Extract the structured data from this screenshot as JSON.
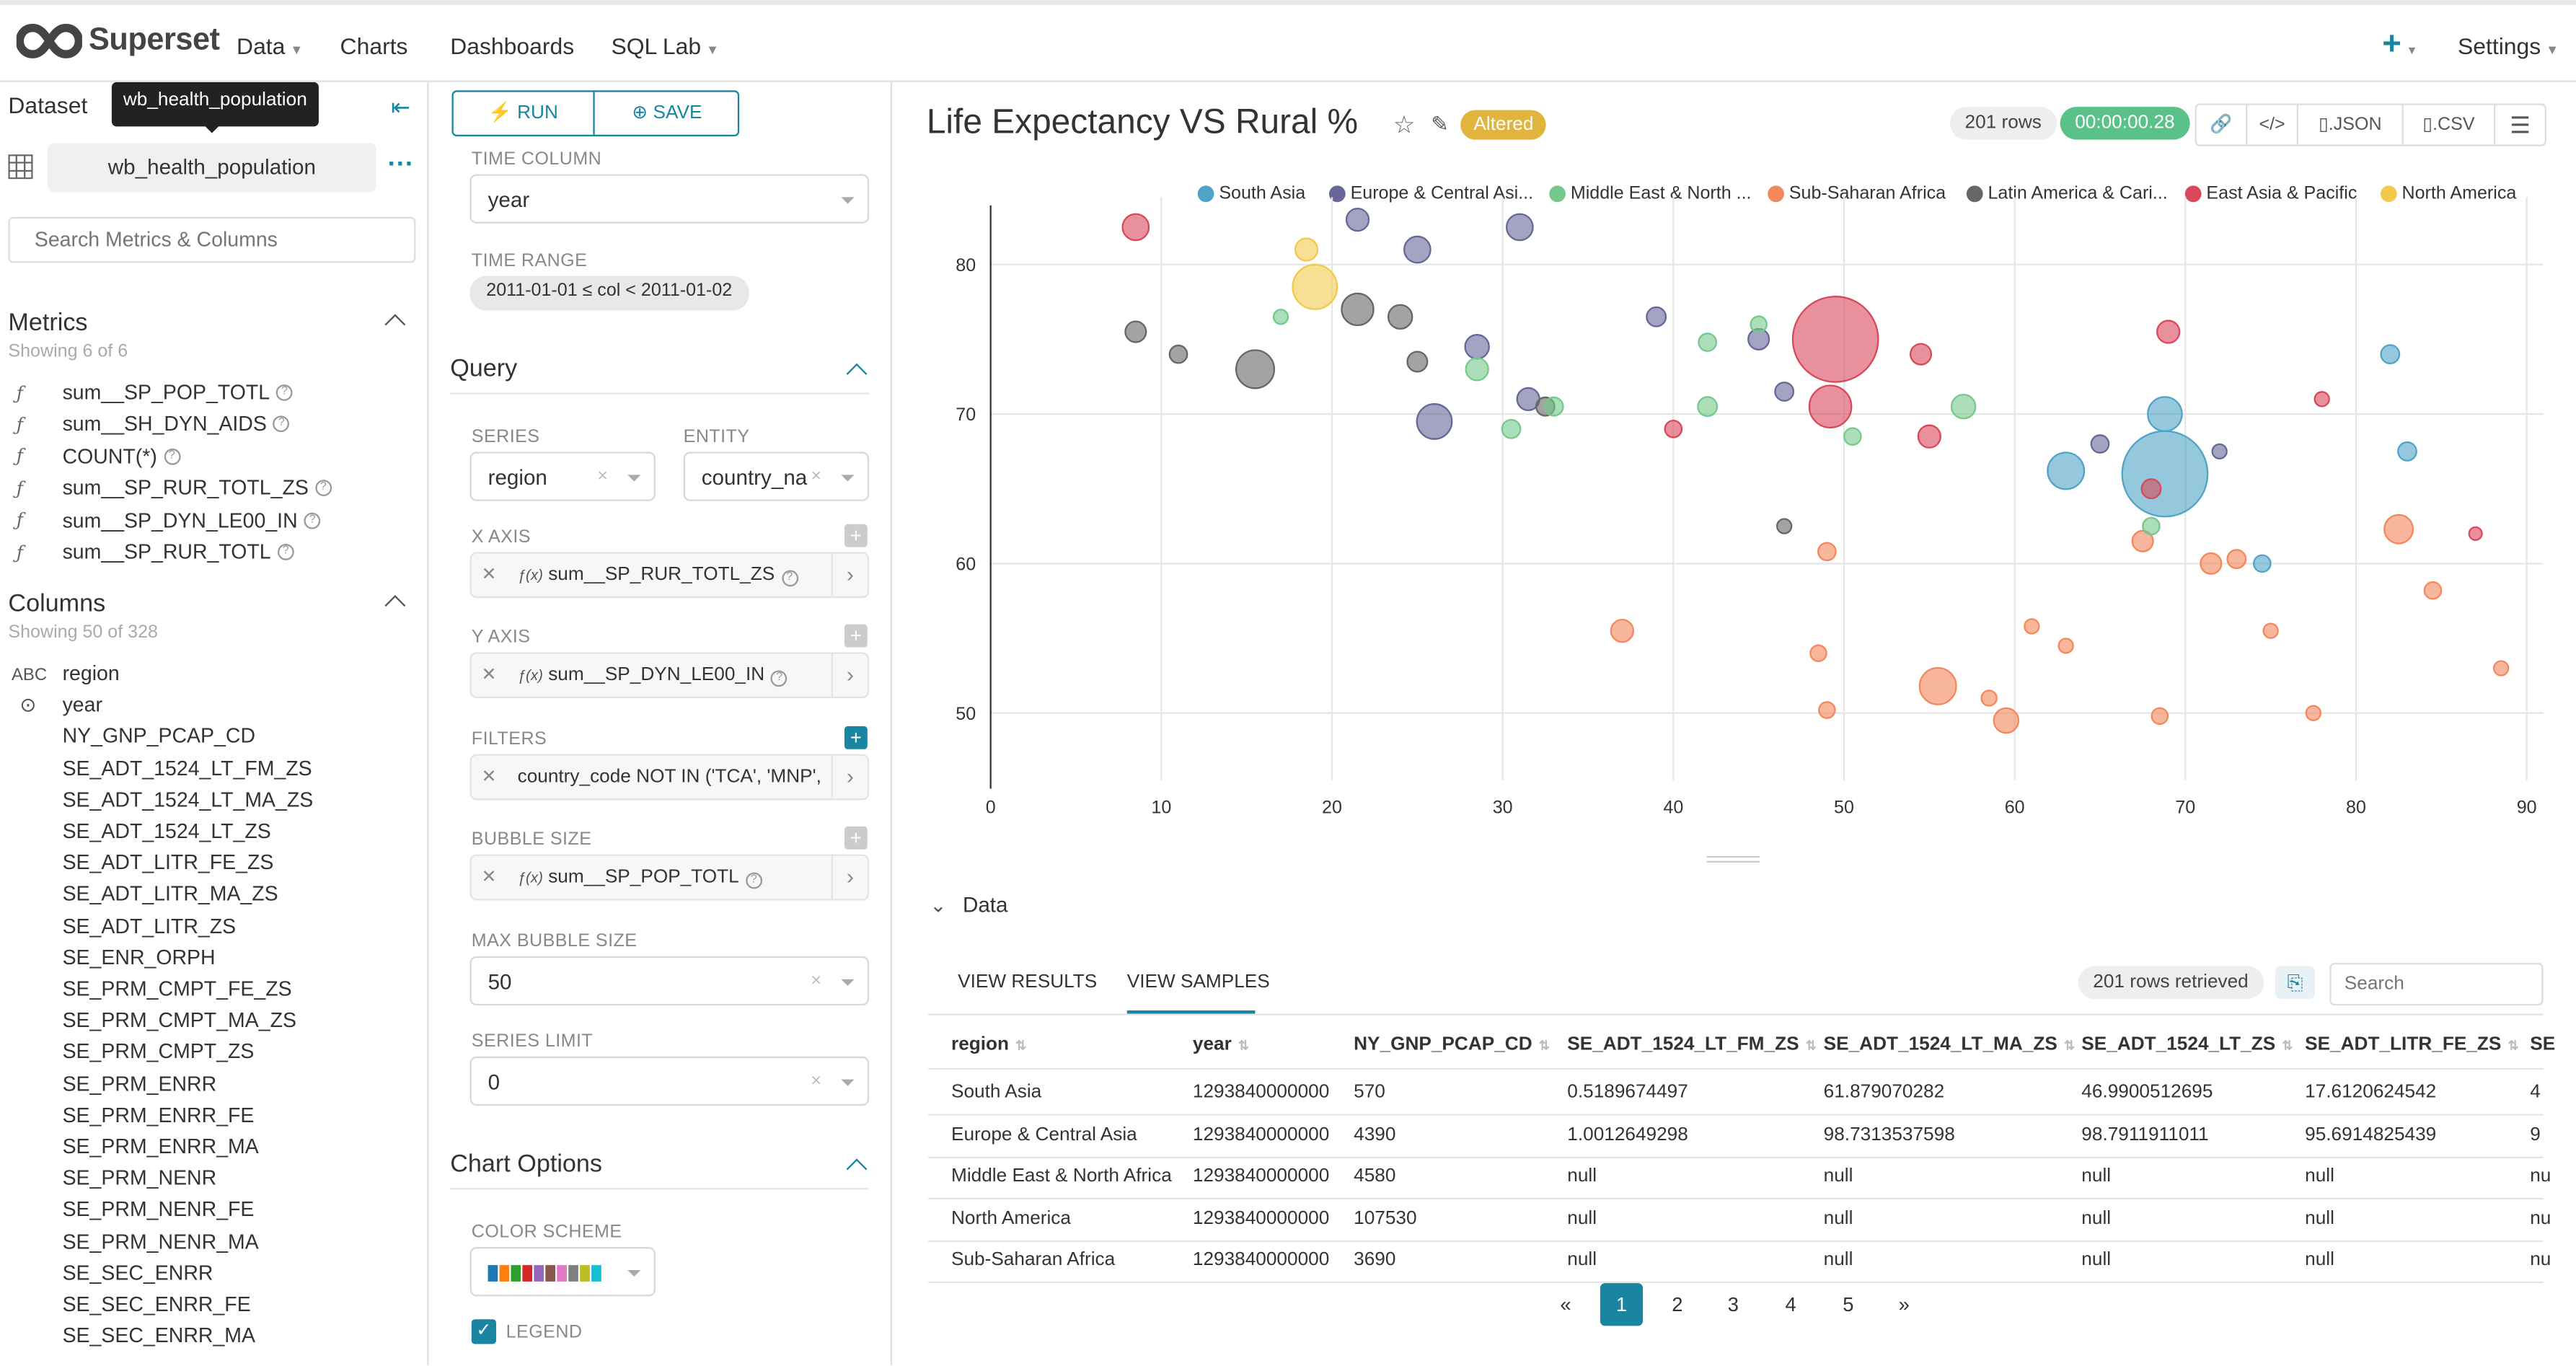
{
  "brand": {
    "name": "Superset"
  },
  "nav": {
    "data": "Data",
    "charts": "Charts",
    "dashboards": "Dashboards",
    "sql_lab": "SQL Lab",
    "plus": "+",
    "settings": "Settings"
  },
  "dataset": {
    "header": "Dataset",
    "tooltip": "wb_health_population",
    "name": "wb_health_population",
    "search_placeholder": "Search Metrics & Columns",
    "metrics_title": "Metrics",
    "metrics_count": "Showing 6 of 6",
    "metrics": [
      "sum__SP_POP_TOTL",
      "sum__SH_DYN_AIDS",
      "COUNT(*)",
      "sum__SP_RUR_TOTL_ZS",
      "sum__SP_DYN_LE00_IN",
      "sum__SP_RUR_TOTL"
    ],
    "columns_title": "Columns",
    "columns_count": "Showing 50 of 328",
    "columns": [
      {
        "type": "ABC",
        "name": "region"
      },
      {
        "type": "clock",
        "name": "year"
      },
      {
        "type": "",
        "name": "NY_GNP_PCAP_CD"
      },
      {
        "type": "",
        "name": "SE_ADT_1524_LT_FM_ZS"
      },
      {
        "type": "",
        "name": "SE_ADT_1524_LT_MA_ZS"
      },
      {
        "type": "",
        "name": "SE_ADT_1524_LT_ZS"
      },
      {
        "type": "",
        "name": "SE_ADT_LITR_FE_ZS"
      },
      {
        "type": "",
        "name": "SE_ADT_LITR_MA_ZS"
      },
      {
        "type": "",
        "name": "SE_ADT_LITR_ZS"
      },
      {
        "type": "",
        "name": "SE_ENR_ORPH"
      },
      {
        "type": "",
        "name": "SE_PRM_CMPT_FE_ZS"
      },
      {
        "type": "",
        "name": "SE_PRM_CMPT_MA_ZS"
      },
      {
        "type": "",
        "name": "SE_PRM_CMPT_ZS"
      },
      {
        "type": "",
        "name": "SE_PRM_ENRR"
      },
      {
        "type": "",
        "name": "SE_PRM_ENRR_FE"
      },
      {
        "type": "",
        "name": "SE_PRM_ENRR_MA"
      },
      {
        "type": "",
        "name": "SE_PRM_NENR"
      },
      {
        "type": "",
        "name": "SE_PRM_NENR_FE"
      },
      {
        "type": "",
        "name": "SE_PRM_NENR_MA"
      },
      {
        "type": "",
        "name": "SE_SEC_ENRR"
      },
      {
        "type": "",
        "name": "SE_SEC_ENRR_FE"
      },
      {
        "type": "",
        "name": "SE_SEC_ENRR_MA"
      }
    ]
  },
  "controls": {
    "run": "RUN",
    "save": "SAVE",
    "time_column_label": "TIME COLUMN",
    "time_column_value": "year",
    "time_range_label": "TIME RANGE",
    "time_range_value": "2011-01-01 ≤ col < 2011-01-02",
    "query_title": "Query",
    "series_label": "SERIES",
    "series_value": "region",
    "entity_label": "ENTITY",
    "entity_value": "country_na",
    "x_axis_label": "X AXIS",
    "x_axis_value": "sum__SP_RUR_TOTL_ZS",
    "y_axis_label": "Y AXIS",
    "y_axis_value": "sum__SP_DYN_LE00_IN",
    "filters_label": "FILTERS",
    "filters_value": "country_code NOT IN ('TCA', 'MNP', ...",
    "bubble_size_label": "BUBBLE SIZE",
    "bubble_size_value": "sum__SP_POP_TOTL",
    "max_bubble_label": "MAX BUBBLE SIZE",
    "max_bubble_value": "50",
    "series_limit_label": "SERIES LIMIT",
    "series_limit_value": "0",
    "chart_options_title": "Chart Options",
    "color_scheme_label": "COLOR SCHEME",
    "color_scheme_swatches": [
      "#1f77b4",
      "#ff7f0e",
      "#2ca02c",
      "#d62728",
      "#9467bd",
      "#8c564b",
      "#e377c2",
      "#7f7f7f",
      "#bcbd22",
      "#17becf"
    ],
    "legend_label": "LEGEND",
    "fx": "ƒ(x)"
  },
  "chart": {
    "title": "Life Expectancy VS Rural %",
    "altered": "Altered",
    "rows": "201 rows",
    "timer": "00:00:00.28",
    "json": ".JSON",
    "csv": ".CSV"
  },
  "chart_data": {
    "type": "scatter",
    "title": "Life Expectancy VS Rural %",
    "xlabel": "sum__SP_RUR_TOTL_ZS",
    "ylabel": "sum__SP_DYN_LE00_IN",
    "xlim": [
      0,
      90
    ],
    "ylim": [
      45,
      84
    ],
    "xticks": [
      0,
      10,
      20,
      30,
      40,
      50,
      60,
      70,
      80,
      90
    ],
    "yticks": [
      50,
      60,
      70,
      80
    ],
    "series": [
      {
        "name": "South Asia",
        "color": "#4fa3c7"
      },
      {
        "name": "Europe & Central Asi...",
        "color": "#666699"
      },
      {
        "name": "Middle East & North ...",
        "color": "#74c98a"
      },
      {
        "name": "Sub-Saharan Africa",
        "color": "#f4875b"
      },
      {
        "name": "Latin America & Cari...",
        "color": "#666666"
      },
      {
        "name": "East Asia & Pacific",
        "color": "#d9485a"
      },
      {
        "name": "North America",
        "color": "#f2c94c"
      }
    ],
    "points": [
      {
        "s": 5,
        "x": 49.5,
        "y": 75,
        "size": 1.0
      },
      {
        "s": 5,
        "x": 49.2,
        "y": 70.5,
        "size": 0.45
      },
      {
        "s": 0,
        "x": 68.8,
        "y": 66,
        "size": 1.0
      },
      {
        "s": 0,
        "x": 68.8,
        "y": 70,
        "size": 0.35
      },
      {
        "s": 0,
        "x": 63,
        "y": 66.2,
        "size": 0.38
      },
      {
        "s": 0,
        "x": 82,
        "y": 74,
        "size": 0.15
      },
      {
        "s": 0,
        "x": 83,
        "y": 67.5,
        "size": 0.15
      },
      {
        "s": 0,
        "x": 74.5,
        "y": 60,
        "size": 0.13
      },
      {
        "s": 6,
        "x": 19,
        "y": 78.5,
        "size": 0.48
      },
      {
        "s": 6,
        "x": 18.5,
        "y": 81,
        "size": 0.2
      },
      {
        "s": 4,
        "x": 15.5,
        "y": 73,
        "size": 0.4
      },
      {
        "s": 4,
        "x": 21.5,
        "y": 77,
        "size": 0.32
      },
      {
        "s": 4,
        "x": 24,
        "y": 76.5,
        "size": 0.22
      },
      {
        "s": 4,
        "x": 8.5,
        "y": 75.5,
        "size": 0.18
      },
      {
        "s": 4,
        "x": 11,
        "y": 74,
        "size": 0.14
      },
      {
        "s": 4,
        "x": 25,
        "y": 73.5,
        "size": 0.17
      },
      {
        "s": 4,
        "x": 32.5,
        "y": 70.5,
        "size": 0.15
      },
      {
        "s": 4,
        "x": 46.5,
        "y": 62.5,
        "size": 0.1
      },
      {
        "s": 1,
        "x": 26,
        "y": 69.5,
        "size": 0.36
      },
      {
        "s": 1,
        "x": 21.5,
        "y": 83,
        "size": 0.2
      },
      {
        "s": 1,
        "x": 25,
        "y": 81,
        "size": 0.25
      },
      {
        "s": 1,
        "x": 31,
        "y": 82.5,
        "size": 0.25
      },
      {
        "s": 1,
        "x": 28.5,
        "y": 74.5,
        "size": 0.22
      },
      {
        "s": 1,
        "x": 45,
        "y": 75,
        "size": 0.18
      },
      {
        "s": 1,
        "x": 39,
        "y": 76.5,
        "size": 0.16
      },
      {
        "s": 1,
        "x": 46.5,
        "y": 71.5,
        "size": 0.15
      },
      {
        "s": 1,
        "x": 65,
        "y": 68,
        "size": 0.14
      },
      {
        "s": 1,
        "x": 72,
        "y": 67.5,
        "size": 0.1
      },
      {
        "s": 1,
        "x": 31.5,
        "y": 71,
        "size": 0.2
      },
      {
        "s": 3,
        "x": 55.5,
        "y": 51.8,
        "size": 0.38
      },
      {
        "s": 3,
        "x": 37,
        "y": 55.5,
        "size": 0.2
      },
      {
        "s": 3,
        "x": 59.5,
        "y": 49.5,
        "size": 0.23
      },
      {
        "s": 3,
        "x": 82.5,
        "y": 62.3,
        "size": 0.28
      },
      {
        "s": 3,
        "x": 67.5,
        "y": 61.5,
        "size": 0.18
      },
      {
        "s": 3,
        "x": 71.5,
        "y": 60,
        "size": 0.18
      },
      {
        "s": 3,
        "x": 73,
        "y": 60.3,
        "size": 0.15
      },
      {
        "s": 3,
        "x": 84.5,
        "y": 58.2,
        "size": 0.13
      },
      {
        "s": 3,
        "x": 68.5,
        "y": 49.8,
        "size": 0.12
      },
      {
        "s": 3,
        "x": 48.5,
        "y": 54,
        "size": 0.12
      },
      {
        "s": 3,
        "x": 49,
        "y": 50.2,
        "size": 0.12
      },
      {
        "s": 3,
        "x": 49,
        "y": 60.8,
        "size": 0.14
      },
      {
        "s": 3,
        "x": 58.5,
        "y": 51,
        "size": 0.11
      },
      {
        "s": 3,
        "x": 61,
        "y": 55.8,
        "size": 0.1
      },
      {
        "s": 3,
        "x": 63,
        "y": 54.5,
        "size": 0.1
      },
      {
        "s": 3,
        "x": 77.5,
        "y": 50,
        "size": 0.1
      },
      {
        "s": 3,
        "x": 88.5,
        "y": 53,
        "size": 0.1
      },
      {
        "s": 3,
        "x": 75,
        "y": 55.5,
        "size": 0.1
      },
      {
        "s": 2,
        "x": 28.5,
        "y": 73,
        "size": 0.2
      },
      {
        "s": 2,
        "x": 30.5,
        "y": 69,
        "size": 0.15
      },
      {
        "s": 2,
        "x": 33,
        "y": 70.5,
        "size": 0.15
      },
      {
        "s": 2,
        "x": 42,
        "y": 74.8,
        "size": 0.14
      },
      {
        "s": 2,
        "x": 45,
        "y": 76,
        "size": 0.12
      },
      {
        "s": 2,
        "x": 57,
        "y": 70.5,
        "size": 0.22
      },
      {
        "s": 2,
        "x": 42,
        "y": 70.5,
        "size": 0.16
      },
      {
        "s": 2,
        "x": 50.5,
        "y": 68.5,
        "size": 0.13
      },
      {
        "s": 2,
        "x": 68,
        "y": 62.5,
        "size": 0.13
      },
      {
        "s": 2,
        "x": 17,
        "y": 76.5,
        "size": 0.1
      },
      {
        "s": 5,
        "x": 8.5,
        "y": 82.5,
        "size": 0.25
      },
      {
        "s": 5,
        "x": 54.5,
        "y": 74,
        "size": 0.18
      },
      {
        "s": 5,
        "x": 55,
        "y": 68.5,
        "size": 0.2
      },
      {
        "s": 5,
        "x": 69,
        "y": 75.5,
        "size": 0.2
      },
      {
        "s": 5,
        "x": 68,
        "y": 65,
        "size": 0.16
      },
      {
        "s": 5,
        "x": 40,
        "y": 69,
        "size": 0.13
      },
      {
        "s": 5,
        "x": 78,
        "y": 71,
        "size": 0.1
      },
      {
        "s": 5,
        "x": 87,
        "y": 62,
        "size": 0.08
      }
    ]
  },
  "data_section": {
    "title": "Data",
    "tab_results": "VIEW RESULTS",
    "tab_samples": "VIEW SAMPLES",
    "rows_retrieved": "201 rows retrieved",
    "search_placeholder": "Search",
    "columns": [
      "region",
      "year",
      "NY_GNP_PCAP_CD",
      "SE_ADT_1524_LT_FM_ZS",
      "SE_ADT_1524_LT_MA_ZS",
      "SE_ADT_1524_LT_ZS",
      "SE_ADT_LITR_FE_ZS",
      "SE"
    ],
    "rows": [
      [
        "South Asia",
        "1293840000000",
        "570",
        "0.5189674497",
        "61.879070282",
        "46.9900512695",
        "17.6120624542",
        "4"
      ],
      [
        "Europe & Central Asia",
        "1293840000000",
        "4390",
        "1.0012649298",
        "98.7313537598",
        "98.7911911011",
        "95.6914825439",
        "9"
      ],
      [
        "Middle East & North Africa",
        "1293840000000",
        "4580",
        "null",
        "null",
        "null",
        "null",
        "nu"
      ],
      [
        "North America",
        "1293840000000",
        "107530",
        "null",
        "null",
        "null",
        "null",
        "nu"
      ],
      [
        "Sub-Saharan Africa",
        "1293840000000",
        "3690",
        "null",
        "null",
        "null",
        "null",
        "nu"
      ]
    ],
    "pages": [
      "«",
      "1",
      "2",
      "3",
      "4",
      "5",
      "»"
    ]
  }
}
